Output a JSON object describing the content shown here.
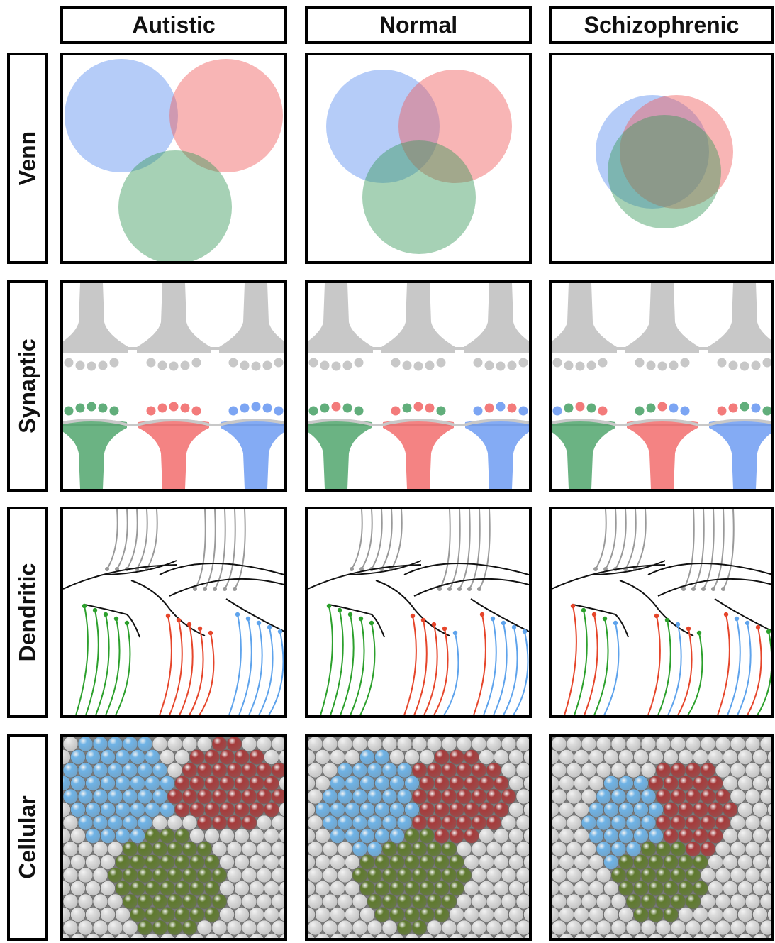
{
  "columns": [
    {
      "label": "Autistic"
    },
    {
      "label": "Normal"
    },
    {
      "label": "Schizophrenic"
    }
  ],
  "rows": [
    {
      "label": "Venn"
    },
    {
      "label": "Synaptic"
    },
    {
      "label": "Dendritic"
    },
    {
      "label": "Cellular"
    }
  ],
  "colors": {
    "blue": "#5b8ff0",
    "red": "#f05a5a",
    "green": "#3a9a5a",
    "grey": "#c8c8c8",
    "cell_blue": "#6fb3e6",
    "cell_red": "#a63b3b",
    "cell_green": "#5f7a2e",
    "cell_grey": "#dcdcdc",
    "line_green": "#2ca02c",
    "line_red": "#e6452a",
    "line_blue": "#5ea3ec"
  }
}
